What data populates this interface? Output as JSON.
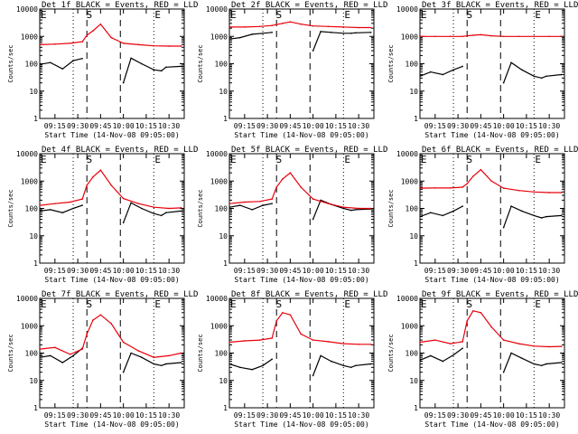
{
  "chart_data": [
    {
      "type": "line",
      "title": "Det 1f BLACK = Events, RED = LLD",
      "xlabel": "Start Time (14-Nov-08 09:05:00)",
      "ylabel": "Counts/sec",
      "x_ticks": [
        "09:15",
        "09:30",
        "09:45",
        "10:00",
        "10:15",
        "10:30"
      ],
      "y_ticks": [
        "1",
        "10",
        "100",
        "1000",
        "10000"
      ],
      "ylim": [
        1,
        10000
      ],
      "y_scale": "log",
      "markers": [
        "E",
        "S",
        "E"
      ],
      "series": [
        {
          "name": "BLACK = Events",
          "color": "#000000",
          "x": [
            "09:05",
            "09:12",
            "09:20",
            "09:27",
            "09:33",
            "09:36",
            "09:58",
            "10:00",
            "10:05",
            "10:12",
            "10:20",
            "10:25",
            "10:28",
            "10:38"
          ],
          "y": [
            95,
            110,
            65,
            130,
            155,
            null,
            null,
            20,
            160,
            100,
            60,
            55,
            75,
            80
          ]
        },
        {
          "name": "RED = LLD",
          "color": "#e8000b",
          "x": [
            "09:05",
            "09:15",
            "09:25",
            "09:33",
            "09:36",
            "09:40",
            "09:45",
            "09:52",
            "10:00",
            "10:10",
            "10:20",
            "10:30",
            "10:38"
          ],
          "y": [
            500,
            520,
            560,
            640,
            1100,
            1600,
            2800,
            900,
            560,
            500,
            450,
            440,
            440
          ]
        }
      ]
    },
    {
      "type": "line",
      "title": "Det 2f BLACK = Events, RED = LLD",
      "xlabel": "Start Time (14-Nov-08 09:05:00)",
      "ylabel": "Counts/sec",
      "x_ticks": [
        "09:15",
        "09:30",
        "09:45",
        "10:00",
        "10:15",
        "10:30"
      ],
      "y_ticks": [
        "1",
        "10",
        "100",
        "1000",
        "10000"
      ],
      "ylim": [
        1,
        10000
      ],
      "y_scale": "log",
      "markers": [
        "E",
        "S",
        "E"
      ],
      "series": [
        {
          "name": "BLACK = Events",
          "color": "#000000",
          "x": [
            "09:05",
            "09:12",
            "09:20",
            "09:27",
            "09:33",
            "09:36",
            "09:58",
            "10:00",
            "10:05",
            "10:12",
            "10:20",
            "10:25",
            "10:28",
            "10:38"
          ],
          "y": [
            800,
            900,
            1200,
            1300,
            1400,
            null,
            null,
            300,
            1500,
            1400,
            1300,
            1300,
            1350,
            1400
          ]
        },
        {
          "name": "RED = LLD",
          "color": "#e8000b",
          "x": [
            "09:05",
            "09:15",
            "09:25",
            "09:33",
            "09:36",
            "09:40",
            "09:45",
            "09:52",
            "10:00",
            "10:10",
            "10:20",
            "10:30",
            "10:38"
          ],
          "y": [
            2200,
            2200,
            2300,
            2500,
            2700,
            3000,
            3400,
            2800,
            2400,
            2300,
            2200,
            2100,
            2100
          ]
        }
      ]
    },
    {
      "type": "line",
      "title": "Det 3f BLACK = Events, RED = LLD",
      "xlabel": "Start Time (14-Nov-08 09:05:00)",
      "ylabel": "Counts/sec",
      "x_ticks": [
        "09:15",
        "09:30",
        "09:45",
        "10:00",
        "10:15",
        "10:30"
      ],
      "y_ticks": [
        "1",
        "10",
        "100",
        "1000",
        "10000"
      ],
      "ylim": [
        1,
        10000
      ],
      "y_scale": "log",
      "markers": [
        "E",
        "S",
        "E"
      ],
      "series": [
        {
          "name": "BLACK = Events",
          "color": "#000000",
          "x": [
            "09:05",
            "09:12",
            "09:20",
            "09:27",
            "09:33",
            "09:36",
            "09:58",
            "10:00",
            "10:05",
            "10:12",
            "10:20",
            "10:25",
            "10:28",
            "10:38"
          ],
          "y": [
            35,
            50,
            40,
            60,
            80,
            null,
            null,
            20,
            110,
            60,
            35,
            30,
            35,
            40
          ]
        },
        {
          "name": "RED = LLD",
          "color": "#e8000b",
          "x": [
            "09:05",
            "09:15",
            "09:25",
            "09:33",
            "09:36",
            "09:40",
            "09:45",
            "09:52",
            "10:00",
            "10:10",
            "10:20",
            "10:30",
            "10:38"
          ],
          "y": [
            1000,
            1000,
            1000,
            1000,
            1050,
            1100,
            1150,
            1050,
            1000,
            1000,
            1000,
            1000,
            1000
          ]
        }
      ]
    },
    {
      "type": "line",
      "title": "Det 4f BLACK = Events, RED = LLD",
      "xlabel": "Start Time (14-Nov-08 09:05:00)",
      "ylabel": "Counts/sec",
      "x_ticks": [
        "09:15",
        "09:30",
        "09:45",
        "10:00",
        "10:15",
        "10:30"
      ],
      "y_ticks": [
        "1",
        "10",
        "100",
        "1000",
        "10000"
      ],
      "ylim": [
        1,
        10000
      ],
      "y_scale": "log",
      "markers": [
        "E",
        "S",
        "E"
      ],
      "series": [
        {
          "name": "BLACK = Events",
          "color": "#000000",
          "x": [
            "09:05",
            "09:12",
            "09:20",
            "09:27",
            "09:33",
            "09:36",
            "09:58",
            "10:00",
            "10:05",
            "10:12",
            "10:20",
            "10:25",
            "10:28",
            "10:38"
          ],
          "y": [
            80,
            90,
            70,
            100,
            130,
            null,
            null,
            30,
            160,
            100,
            65,
            55,
            70,
            80
          ]
        },
        {
          "name": "RED = LLD",
          "color": "#e8000b",
          "x": [
            "09:05",
            "09:15",
            "09:25",
            "09:33",
            "09:36",
            "09:40",
            "09:45",
            "09:52",
            "10:00",
            "10:10",
            "10:20",
            "10:30",
            "10:38"
          ],
          "y": [
            130,
            150,
            170,
            220,
            700,
            1400,
            2500,
            700,
            230,
            150,
            110,
            100,
            105
          ]
        }
      ]
    },
    {
      "type": "line",
      "title": "Det 5f BLACK = Events, RED = LLD",
      "xlabel": "Start Time (14-Nov-08 09:05:00)",
      "ylabel": "Counts/sec",
      "x_ticks": [
        "09:15",
        "09:30",
        "09:45",
        "10:00",
        "10:15",
        "10:30"
      ],
      "y_ticks": [
        "1",
        "10",
        "100",
        "1000",
        "10000"
      ],
      "ylim": [
        1,
        10000
      ],
      "y_scale": "log",
      "markers": [
        "E",
        "S",
        "E"
      ],
      "series": [
        {
          "name": "BLACK = Events",
          "color": "#000000",
          "x": [
            "09:05",
            "09:12",
            "09:20",
            "09:27",
            "09:33",
            "09:36",
            "09:58",
            "10:00",
            "10:05",
            "10:12",
            "10:20",
            "10:25",
            "10:28",
            "10:38"
          ],
          "y": [
            110,
            130,
            90,
            130,
            150,
            null,
            null,
            40,
            200,
            140,
            100,
            85,
            90,
            95
          ]
        },
        {
          "name": "RED = LLD",
          "color": "#e8000b",
          "x": [
            "09:05",
            "09:15",
            "09:25",
            "09:33",
            "09:36",
            "09:40",
            "09:45",
            "09:52",
            "10:00",
            "10:10",
            "10:20",
            "10:30",
            "10:38"
          ],
          "y": [
            150,
            170,
            180,
            220,
            600,
            1200,
            2000,
            600,
            220,
            150,
            110,
            100,
            100
          ]
        }
      ]
    },
    {
      "type": "line",
      "title": "Det 6f BLACK = Events, RED = LLD",
      "xlabel": "Start Time (14-Nov-08 09:05:00)",
      "ylabel": "Counts/sec",
      "x_ticks": [
        "09:15",
        "09:30",
        "09:45",
        "10:00",
        "10:15",
        "10:30"
      ],
      "y_ticks": [
        "1",
        "10",
        "100",
        "1000",
        "10000"
      ],
      "ylim": [
        1,
        10000
      ],
      "y_scale": "log",
      "markers": [
        "E",
        "S",
        "E"
      ],
      "series": [
        {
          "name": "BLACK = Events",
          "color": "#000000",
          "x": [
            "09:05",
            "09:12",
            "09:20",
            "09:27",
            "09:33",
            "09:36",
            "09:58",
            "10:00",
            "10:05",
            "10:12",
            "10:20",
            "10:25",
            "10:28",
            "10:38"
          ],
          "y": [
            50,
            70,
            55,
            80,
            120,
            null,
            null,
            20,
            120,
            80,
            55,
            45,
            50,
            55
          ]
        },
        {
          "name": "RED = LLD",
          "color": "#e8000b",
          "x": [
            "09:05",
            "09:15",
            "09:25",
            "09:33",
            "09:36",
            "09:40",
            "09:45",
            "09:52",
            "10:00",
            "10:10",
            "10:20",
            "10:30",
            "10:38"
          ],
          "y": [
            550,
            560,
            560,
            600,
            800,
            1500,
            2600,
            1000,
            550,
            450,
            400,
            380,
            380
          ]
        }
      ]
    },
    {
      "type": "line",
      "title": "Det 7f BLACK = Events, RED = LLD",
      "xlabel": "Start Time (14-Nov-08 09:05:00)",
      "ylabel": "Counts/sec",
      "x_ticks": [
        "09:15",
        "09:30",
        "09:45",
        "10:00",
        "10:15",
        "10:30"
      ],
      "y_ticks": [
        "1",
        "10",
        "100",
        "1000",
        "10000"
      ],
      "ylim": [
        1,
        10000
      ],
      "y_scale": "log",
      "markers": [
        "E",
        "S",
        "E"
      ],
      "series": [
        {
          "name": "BLACK = Events",
          "color": "#000000",
          "x": [
            "09:05",
            "09:12",
            "09:20",
            "09:27",
            "09:33",
            "09:36",
            "09:58",
            "10:00",
            "10:05",
            "10:12",
            "10:20",
            "10:25",
            "10:28",
            "10:38"
          ],
          "y": [
            70,
            80,
            45,
            80,
            150,
            null,
            null,
            20,
            100,
            70,
            40,
            35,
            40,
            45
          ]
        },
        {
          "name": "RED = LLD",
          "color": "#e8000b",
          "x": [
            "09:05",
            "09:15",
            "09:25",
            "09:33",
            "09:36",
            "09:40",
            "09:45",
            "09:52",
            "10:00",
            "10:10",
            "10:20",
            "10:30",
            "10:38"
          ],
          "y": [
            140,
            160,
            90,
            140,
            500,
            1600,
            2500,
            1200,
            250,
            120,
            70,
            80,
            100
          ]
        }
      ]
    },
    {
      "type": "line",
      "title": "Det 8f BLACK = Events, RED = LLD",
      "xlabel": "Start Time (14-Nov-08 09:05:00)",
      "ylabel": "Counts/sec",
      "x_ticks": [
        "09:15",
        "09:30",
        "09:45",
        "10:00",
        "10:15",
        "10:30"
      ],
      "y_ticks": [
        "1",
        "10",
        "100",
        "1000",
        "10000"
      ],
      "ylim": [
        1,
        10000
      ],
      "y_scale": "log",
      "markers": [
        "E",
        "S",
        "E"
      ],
      "series": [
        {
          "name": "BLACK = Events",
          "color": "#000000",
          "x": [
            "09:05",
            "09:12",
            "09:20",
            "09:27",
            "09:33",
            "09:36",
            "09:58",
            "10:00",
            "10:05",
            "10:12",
            "10:20",
            "10:25",
            "10:28",
            "10:38"
          ],
          "y": [
            40,
            30,
            25,
            35,
            60,
            null,
            null,
            15,
            80,
            50,
            35,
            30,
            35,
            40
          ]
        },
        {
          "name": "RED = LLD",
          "color": "#e8000b",
          "x": [
            "09:05",
            "09:15",
            "09:25",
            "09:33",
            "09:36",
            "09:40",
            "09:45",
            "09:52",
            "10:00",
            "10:10",
            "10:20",
            "10:30",
            "10:38"
          ],
          "y": [
            250,
            280,
            300,
            350,
            1500,
            3000,
            2500,
            500,
            300,
            260,
            220,
            210,
            210
          ]
        }
      ]
    },
    {
      "type": "line",
      "title": "Det 9f BLACK = Events, RED = LLD",
      "xlabel": "Start Time (14-Nov-08 09:05:00)",
      "ylabel": "Counts/sec",
      "x_ticks": [
        "09:15",
        "09:30",
        "09:45",
        "10:00",
        "10:15",
        "10:30"
      ],
      "y_ticks": [
        "1",
        "10",
        "100",
        "1000",
        "10000"
      ],
      "ylim": [
        1,
        10000
      ],
      "y_scale": "log",
      "markers": [
        "E",
        "S",
        "E"
      ],
      "series": [
        {
          "name": "BLACK = Events",
          "color": "#000000",
          "x": [
            "09:05",
            "09:12",
            "09:20",
            "09:27",
            "09:33",
            "09:36",
            "09:58",
            "10:00",
            "10:05",
            "10:12",
            "10:20",
            "10:25",
            "10:28",
            "10:38"
          ],
          "y": [
            55,
            80,
            50,
            85,
            150,
            null,
            null,
            20,
            100,
            65,
            40,
            35,
            40,
            45
          ]
        },
        {
          "name": "RED = LLD",
          "color": "#e8000b",
          "x": [
            "09:05",
            "09:15",
            "09:25",
            "09:33",
            "09:36",
            "09:40",
            "09:45",
            "09:52",
            "10:00",
            "10:10",
            "10:20",
            "10:30",
            "10:38"
          ],
          "y": [
            250,
            300,
            220,
            260,
            1500,
            3500,
            3000,
            900,
            300,
            220,
            180,
            170,
            175
          ]
        }
      ]
    }
  ]
}
